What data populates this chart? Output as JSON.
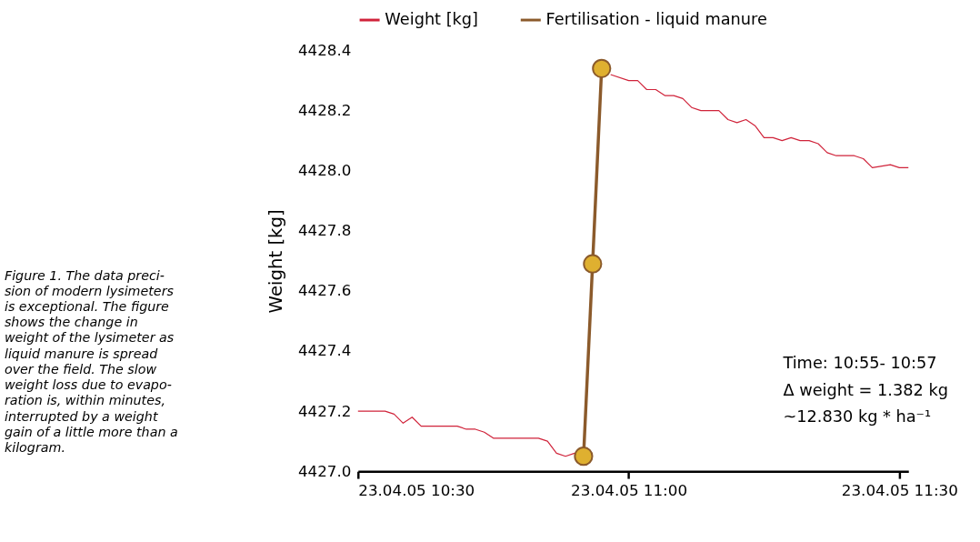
{
  "chart_data": {
    "type": "line",
    "ylabel": "Weight [kg]",
    "x": [
      "--04-23T10:30",
      "--04-23T10:33",
      "--04-23T10:34",
      "--04-23T10:35",
      "--04-23T10:36",
      "--04-23T10:37",
      "--04-23T10:41",
      "--04-23T10:42",
      "--04-23T10:43",
      "--04-23T10:44",
      "--04-23T10:45",
      "--04-23T10:50",
      "--04-23T10:51",
      "--04-23T10:52",
      "--04-23T10:53",
      "--04-23T10:54",
      "--04-23T10:55",
      "--04-23T10:56",
      "--04-23T10:57",
      "--04-23T10:58",
      "--04-23T11:00",
      "--04-23T11:01",
      "--04-23T11:02",
      "--04-23T11:03",
      "--04-23T11:04",
      "--04-23T11:05",
      "--04-23T11:06",
      "--04-23T11:07",
      "--04-23T11:08",
      "--04-23T11:10",
      "--04-23T11:11",
      "--04-23T11:12",
      "--04-23T11:13",
      "--04-23T11:14",
      "--04-23T11:15",
      "--04-23T11:16",
      "--04-23T11:17",
      "--04-23T11:18",
      "--04-23T11:19",
      "--04-23T11:20",
      "--04-23T11:21",
      "--04-23T11:22",
      "--04-23T11:23",
      "--04-23T11:25",
      "--04-23T11:26",
      "--04-23T11:27",
      "--04-23T11:29",
      "--04-23T11:30",
      "--04-23T11:31"
    ],
    "series": [
      {
        "name": "Weight [kg]",
        "color": "#d0233a",
        "values": [
          4427.2,
          4427.2,
          4427.19,
          4427.16,
          4427.18,
          4427.15,
          4427.15,
          4427.14,
          4427.14,
          4427.13,
          4427.11,
          4427.11,
          4427.1,
          4427.06,
          4427.05,
          4427.06,
          null,
          null,
          null,
          4428.32,
          4428.3,
          4428.3,
          4428.27,
          4428.27,
          4428.25,
          4428.25,
          4428.24,
          4428.21,
          4428.2,
          4428.2,
          4428.17,
          4428.16,
          4428.17,
          4428.15,
          4428.11,
          4428.11,
          4428.1,
          4428.11,
          4428.1,
          4428.1,
          4428.09,
          4428.06,
          4428.05,
          4428.05,
          4428.04,
          4428.01,
          4428.02,
          4428.01,
          4428.01
        ]
      },
      {
        "name": "Fertilisation - liquid manure",
        "color": "#8b5a2b",
        "marker": "circle",
        "x": [
          "--04-23T10:55",
          "--04-23T10:56",
          "--04-23T10:57"
        ],
        "values": [
          4427.05,
          4427.69,
          4428.34
        ]
      }
    ],
    "xlim": [
      "--04-23T10:30",
      "--04-23T11:31"
    ],
    "xticks": [
      {
        "value": "--04-23T10:30",
        "label": "23.04.05 10:30"
      },
      {
        "value": "--04-23T11:00",
        "label": "23.04.05 11:00"
      },
      {
        "value": "--04-23T11:30",
        "label": "23.04.05 11:30"
      }
    ],
    "ylim": [
      4427.0,
      4428.4
    ],
    "yticks": [
      {
        "value": 4427.0,
        "label": "4427.0"
      },
      {
        "value": 4427.2,
        "label": "4427.2"
      },
      {
        "value": 4427.4,
        "label": "4427.4"
      },
      {
        "value": 4427.6,
        "label": "4427.6"
      },
      {
        "value": 4427.8,
        "label": "4427.8"
      },
      {
        "value": 4428.0,
        "label": "4428.0"
      },
      {
        "value": 4428.2,
        "label": "4428.2"
      },
      {
        "value": 4428.4,
        "label": "4428.4"
      }
    ],
    "grid": false,
    "legend": "top",
    "annotations": [
      "Time: 10:55- 10:57",
      "Δ weight = 1.382 kg",
      "~12.830 kg * ha⁻¹",
      "Figure 1. The data preci-\nsion of modern lysimeters\nis exceptional. The figure\nshows the change in\nweight of the lysimeter as\nliquid manure is spread\nover the field. The slow\nweight loss due to evapo-\nration is, within minutes,\ninterrupted by a weight\ngain of a little more than a\nkilogram."
    ]
  }
}
